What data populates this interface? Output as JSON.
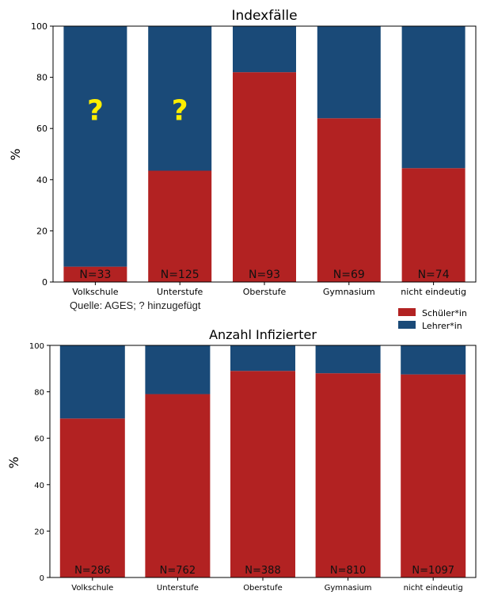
{
  "source_note": "Quelle: AGES; ? hinzugefügt",
  "legend": {
    "placement": "right, between the two charts",
    "entries": [
      {
        "label": "Schüler*in",
        "color": "#b22222"
      },
      {
        "label": "Lehrer*in",
        "color": "#1a4a78"
      }
    ]
  },
  "chart_data": [
    {
      "type": "bar",
      "stacked": true,
      "title": "Indexfälle",
      "xlabel": "",
      "ylabel": "%",
      "ylim": [
        0,
        100
      ],
      "yticks": [
        "0",
        "20",
        "40",
        "60",
        "80",
        "100"
      ],
      "categories": [
        "Volkschule",
        "Unterstufe",
        "Oberstufe",
        "Gymnasium",
        "nicht eindeutig"
      ],
      "series": [
        {
          "name": "Schüler*in",
          "color": "#b22222",
          "values": [
            6,
            43.5,
            82,
            64,
            44.5
          ]
        },
        {
          "name": "Lehrer*in",
          "color": "#1a4a78",
          "values": [
            94,
            56.5,
            18,
            36,
            55.5
          ]
        }
      ],
      "n_labels": [
        "N=33",
        "N=125",
        "N=93",
        "N=69",
        "N=74"
      ],
      "annotations": [
        {
          "text": "?",
          "category": "Volkschule",
          "y": 67,
          "color": "#ffee00"
        },
        {
          "text": "?",
          "category": "Unterstufe",
          "y": 67,
          "color": "#ffee00"
        }
      ]
    },
    {
      "type": "bar",
      "stacked": true,
      "title": "Anzahl Infizierter",
      "xlabel": "",
      "ylabel": "%",
      "ylim": [
        0,
        100
      ],
      "yticks": [
        "0",
        "20",
        "40",
        "60",
        "80",
        "100"
      ],
      "categories": [
        "Volkschule",
        "Unterstufe",
        "Oberstufe",
        "Gymnasium",
        "nicht eindeutig"
      ],
      "series": [
        {
          "name": "Schüler*in",
          "color": "#b22222",
          "values": [
            68.5,
            79,
            89,
            88,
            87.5
          ]
        },
        {
          "name": "Lehrer*in",
          "color": "#1a4a78",
          "values": [
            31.5,
            21,
            11,
            12,
            12.5
          ]
        }
      ],
      "n_labels": [
        "N=286",
        "N=762",
        "N=388",
        "N=810",
        "N=1097"
      ]
    }
  ]
}
